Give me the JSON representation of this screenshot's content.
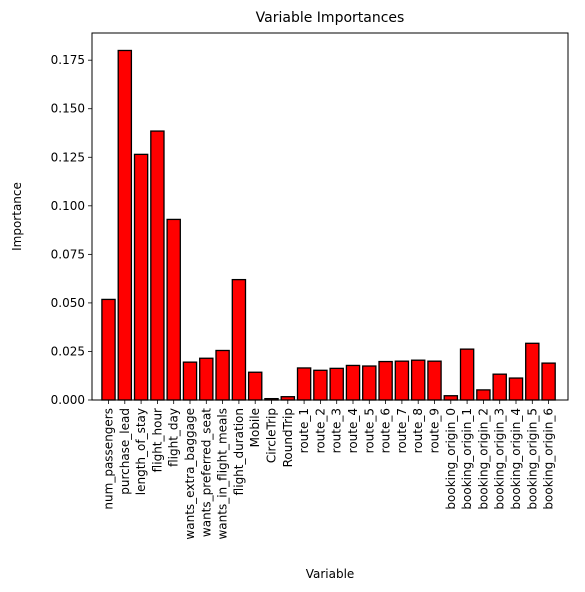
{
  "chart_data": {
    "type": "bar",
    "title": "Variable Importances",
    "xlabel": "Variable",
    "ylabel": "Importance",
    "ylim": [
      0,
      0.189
    ],
    "yticks": [
      "0.000",
      "0.025",
      "0.050",
      "0.075",
      "0.100",
      "0.125",
      "0.150",
      "0.175"
    ],
    "bar_color": "#ff0000",
    "edge_color": "#000000",
    "grid": false,
    "categories": [
      "num_passengers",
      "purchase_lead",
      "length_of_stay",
      "flight_hour",
      "flight_day",
      "wants_extra_baggage",
      "wants_preferred_seat",
      "wants_in_flight_meals",
      "flight_duration",
      "Mobile",
      "CircleTrip",
      "RoundTrip",
      "route_1",
      "route_2",
      "route_3",
      "route_4",
      "route_5",
      "route_6",
      "route_7",
      "route_8",
      "route_9",
      "booking_origin_0",
      "booking_origin_1",
      "booking_origin_2",
      "booking_origin_3",
      "booking_origin_4",
      "booking_origin_5",
      "booking_origin_6"
    ],
    "values": [
      0.0518,
      0.18,
      0.1265,
      0.1385,
      0.093,
      0.0195,
      0.0215,
      0.0255,
      0.062,
      0.0143,
      0.0007,
      0.0017,
      0.0165,
      0.0153,
      0.0163,
      0.0178,
      0.0175,
      0.0198,
      0.02,
      0.0205,
      0.02,
      0.0022,
      0.0262,
      0.0052,
      0.0133,
      0.0113,
      0.0292,
      0.019
    ]
  }
}
